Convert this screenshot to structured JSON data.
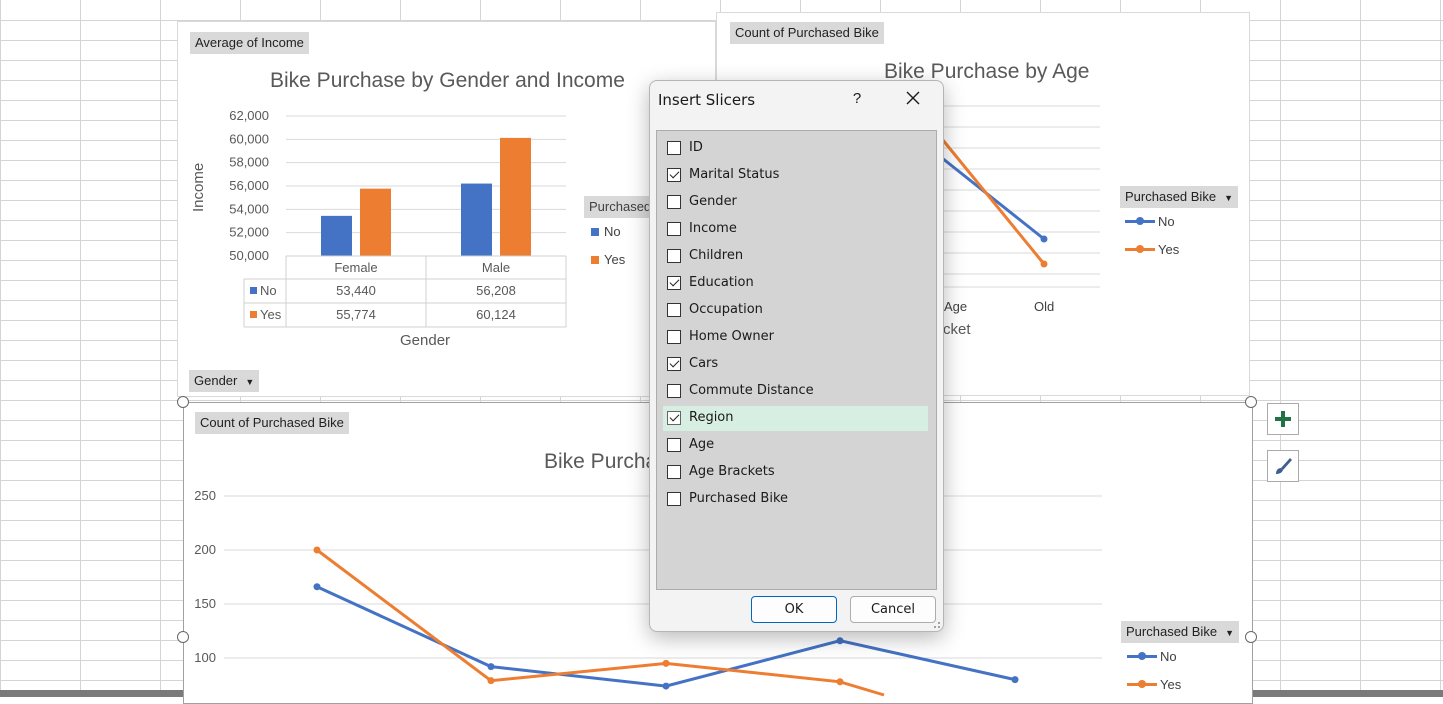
{
  "chart_top_left": {
    "field_button": "Average of Income",
    "title": "Bike Purchase by Gender and Income",
    "y_axis_title": "Income",
    "x_axis_title": "Gender",
    "y_ticks": [
      "62,000",
      "60,000",
      "58,000",
      "56,000",
      "54,000",
      "52,000",
      "50,000"
    ],
    "filter_button": "Gender",
    "legend_partial": "Purchased",
    "legend": [
      "No",
      "Yes"
    ],
    "table": {
      "columns": [
        "Female",
        "Male"
      ],
      "rows": [
        {
          "label": "No",
          "values": [
            "53,440",
            "56,208"
          ]
        },
        {
          "label": "Yes",
          "values": [
            "55,774",
            "60,124"
          ]
        }
      ]
    }
  },
  "chart_top_right": {
    "field_button": "Count of Purchased Bike",
    "title": "Bike Purchase by Age",
    "x_tick_partial": "Age",
    "x_tick_old": "Old",
    "x_axis_title_partial": "cket",
    "legend_title": "Purchased Bike",
    "legend": [
      "No",
      "Yes"
    ]
  },
  "chart_bottom": {
    "field_button": "Count of Purchased Bike",
    "title_partial": "Bike Purcha",
    "y_ticks": [
      "250",
      "200",
      "150",
      "100"
    ],
    "legend_title": "Purchased Bike",
    "legend": [
      "No",
      "Yes"
    ]
  },
  "dialog": {
    "title": "Insert Slicers",
    "help": "?",
    "fields": [
      {
        "label": "ID",
        "checked": false
      },
      {
        "label": "Marital Status",
        "checked": true
      },
      {
        "label": "Gender",
        "checked": false
      },
      {
        "label": "Income",
        "checked": false
      },
      {
        "label": "Children",
        "checked": false
      },
      {
        "label": "Education",
        "checked": true
      },
      {
        "label": "Occupation",
        "checked": false
      },
      {
        "label": "Home Owner",
        "checked": false
      },
      {
        "label": "Cars",
        "checked": true
      },
      {
        "label": "Commute Distance",
        "checked": false
      },
      {
        "label": "Region",
        "checked": true,
        "highlighted": true
      },
      {
        "label": "Age",
        "checked": false
      },
      {
        "label": "Age Brackets",
        "checked": false
      },
      {
        "label": "Purchased Bike",
        "checked": false
      }
    ],
    "ok_label": "OK",
    "cancel_label": "Cancel"
  },
  "chart_data": [
    {
      "type": "bar",
      "title": "Bike Purchase by Gender and Income",
      "xlabel": "Gender",
      "ylabel": "Income",
      "categories": [
        "Female",
        "Male"
      ],
      "series": [
        {
          "name": "No",
          "values": [
            53440,
            56208
          ]
        },
        {
          "name": "Yes",
          "values": [
            55774,
            60124
          ]
        }
      ],
      "ylim": [
        50000,
        62000
      ],
      "grid": true
    },
    {
      "type": "line",
      "title": "Bike Purchase by Age",
      "categories": [
        "Age",
        "Old"
      ],
      "series": [
        {
          "name": "No",
          "values": [
            null,
            null
          ]
        },
        {
          "name": "Yes",
          "values": [
            null,
            null
          ]
        }
      ]
    },
    {
      "type": "line",
      "categories": [
        "",
        "",
        "",
        "",
        "",
        ""
      ],
      "series": [
        {
          "name": "No",
          "values": [
            166,
            92,
            74,
            null,
            116,
            80
          ]
        },
        {
          "name": "Yes",
          "values": [
            200,
            79,
            95,
            null,
            78,
            null
          ]
        }
      ],
      "ylim": [
        50,
        250
      ],
      "grid": true
    }
  ],
  "colors": {
    "no": "#4472c4",
    "yes": "#ed7d31",
    "selection": "#d6efe2",
    "excel_green": "#217346"
  }
}
